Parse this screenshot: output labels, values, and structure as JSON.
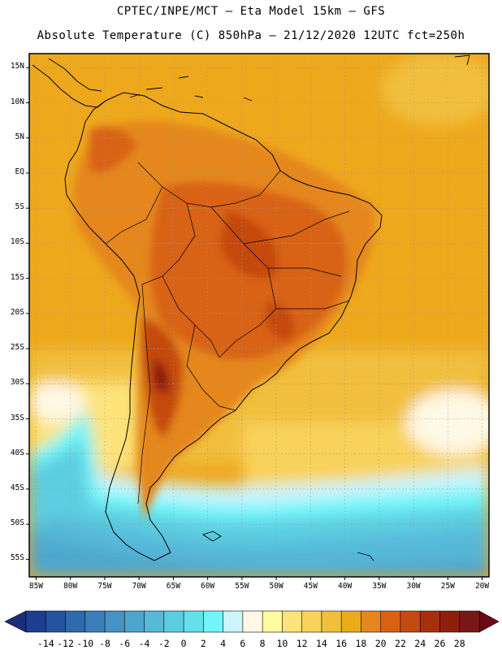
{
  "header": {
    "line1": "CPTEC/INPE/MCT —  Eta Model 15km — GFS",
    "line2": "Absolute Temperature (C) 850hPa — 21/12/2020 12UTC fct=250h"
  },
  "map": {
    "lat_labels": [
      "15N",
      "10N",
      "5N",
      "EQ",
      "5S",
      "10S",
      "15S",
      "20S",
      "25S",
      "30S",
      "35S",
      "40S",
      "45S",
      "50S",
      "55S"
    ],
    "lon_labels": [
      "85W",
      "80W",
      "75W",
      "70W",
      "65W",
      "60W",
      "55W",
      "50W",
      "45W",
      "40W",
      "35W",
      "30W",
      "25W",
      "20W"
    ],
    "lat_values": [
      15,
      10,
      5,
      0,
      -5,
      -10,
      -15,
      -20,
      -25,
      -30,
      -35,
      -40,
      -45,
      -50,
      -55
    ],
    "lon_values": [
      -85,
      -80,
      -75,
      -70,
      -65,
      -60,
      -55,
      -50,
      -45,
      -40,
      -35,
      -30,
      -25,
      -20
    ],
    "extent": {
      "lon_min": -86,
      "lon_max": -19,
      "lat_min": -57.5,
      "lat_max": 17
    }
  },
  "colorbar": {
    "labels": [
      "-14",
      "-12",
      "-10",
      "-8",
      "-6",
      "-4",
      "-2",
      "0",
      "2",
      "4",
      "6",
      "8",
      "10",
      "12",
      "14",
      "16",
      "18",
      "20",
      "22",
      "24",
      "26",
      "28"
    ],
    "colors": [
      "#1c3f8f",
      "#2454a0",
      "#2d6aae",
      "#3a7fba",
      "#4592c4",
      "#4ea6ce",
      "#57b8d8",
      "#5ccde0",
      "#63e0ec",
      "#72f5fa",
      "#ccf4fb",
      "#fff8e4",
      "#fffa9e",
      "#fde37a",
      "#f8d25a",
      "#f1bf3c",
      "#ecac1a",
      "#e5871c",
      "#d86212",
      "#c44a10",
      "#a82f0c",
      "#8e1f0c",
      "#781618"
    ],
    "arrow_left": "#1a2f7a",
    "arrow_right": "#6a0a14"
  }
}
